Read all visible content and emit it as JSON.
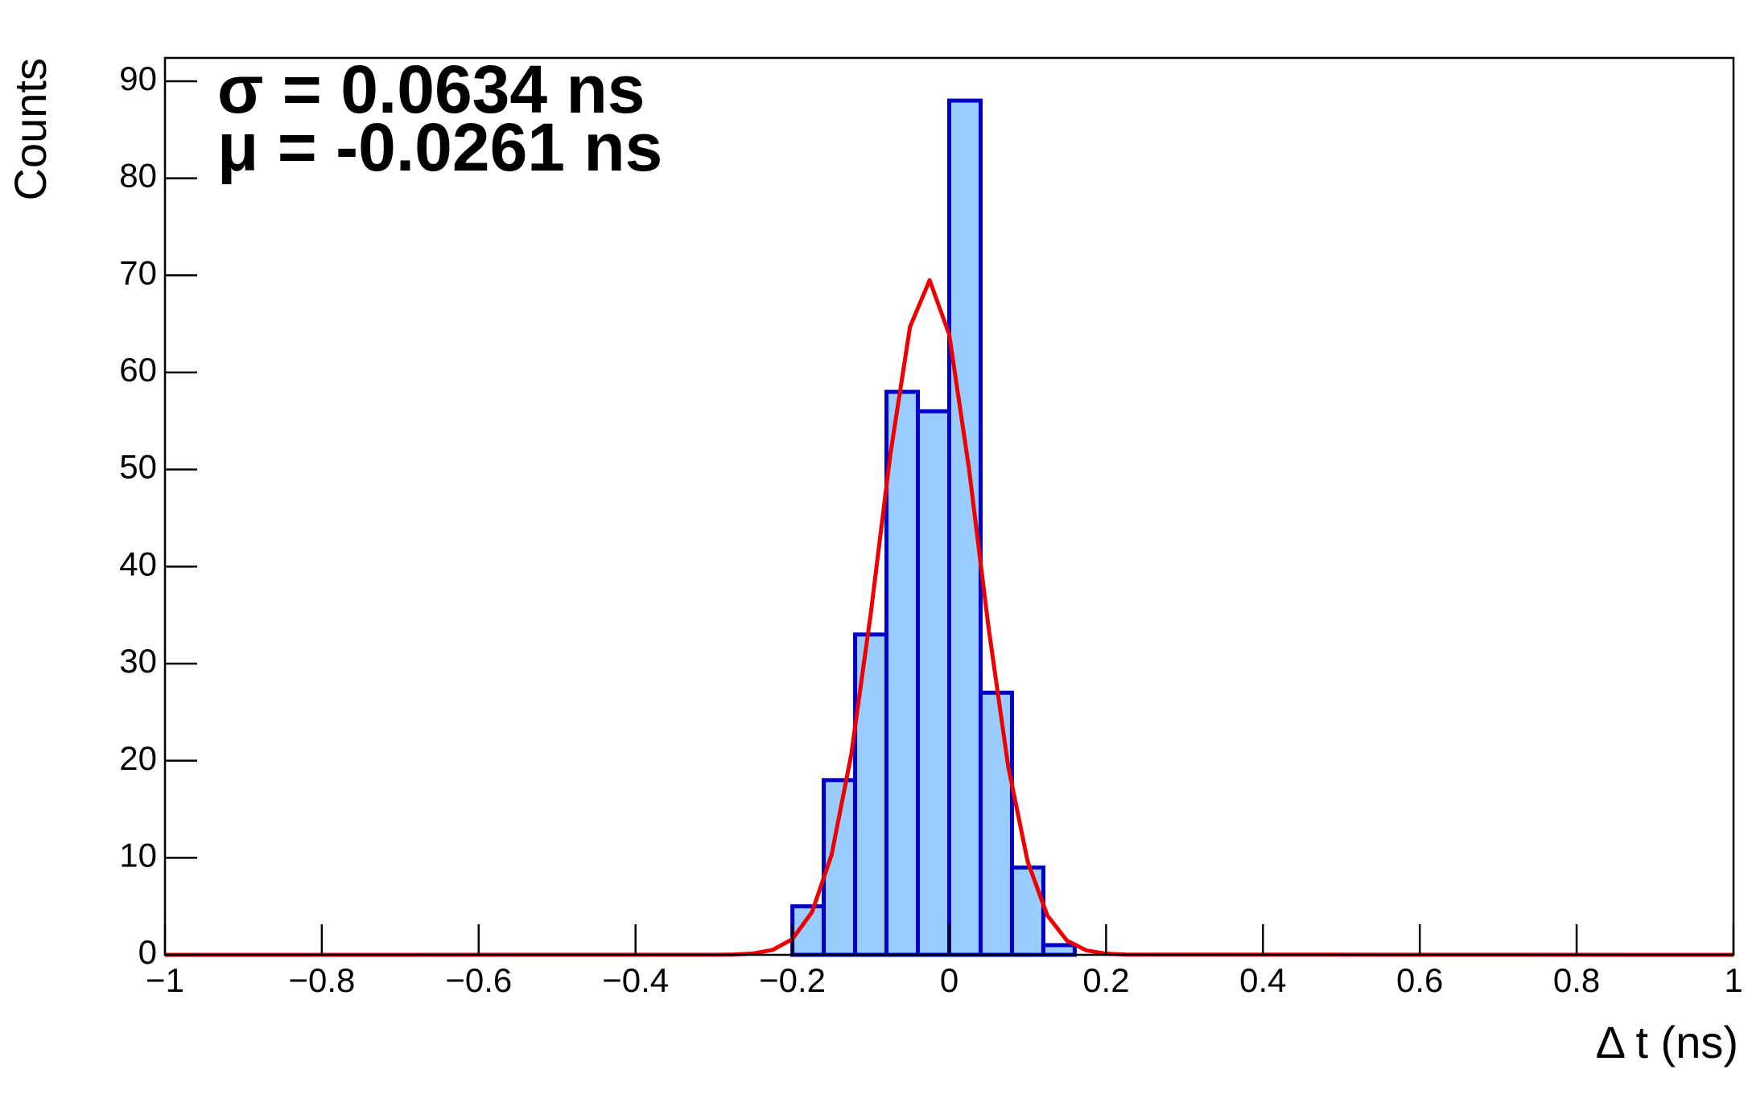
{
  "chart_data": {
    "type": "histogram",
    "xlabel": "Δ t (ns)",
    "ylabel": "Counts",
    "annotations": [
      "σ = 0.0634 ns",
      "μ = -0.0261 ns"
    ],
    "bins": [
      -1,
      -0.96,
      -0.92,
      -0.88,
      -0.84,
      -0.8,
      -0.76,
      -0.72,
      -0.68,
      -0.64,
      -0.6,
      -0.56,
      -0.52,
      -0.48,
      -0.44,
      -0.4,
      -0.36,
      -0.32,
      -0.28,
      -0.24,
      -0.2,
      -0.16,
      -0.12,
      -0.08,
      -0.04,
      0,
      0.04,
      0.08,
      0.12,
      0.16,
      0.2,
      0.24,
      0.28,
      0.32,
      0.36,
      0.4,
      0.44,
      0.48,
      0.52,
      0.56,
      0.6,
      0.64,
      0.68,
      0.72,
      0.76,
      0.8,
      0.84,
      0.88,
      0.92,
      0.96,
      1
    ],
    "values": [
      0,
      0,
      0,
      0,
      0,
      0,
      0,
      0,
      0,
      0,
      0,
      0,
      0,
      0,
      0,
      0,
      0,
      0,
      0,
      0,
      5,
      18,
      33,
      58,
      56,
      88,
      27,
      9,
      1,
      0,
      0,
      0,
      0,
      0,
      0,
      0,
      0,
      0,
      0,
      0,
      0,
      0,
      0,
      0,
      0,
      0,
      0,
      0,
      0,
      0
    ],
    "color": "#99ccff",
    "edge_color": "#0000cc",
    "fit": {
      "type": "line",
      "color": "#ee0000",
      "x": [
        -1,
        -0.3,
        -0.275,
        -0.25,
        -0.225,
        -0.2,
        -0.175,
        -0.15,
        -0.125,
        -0.1,
        -0.075,
        -0.05,
        -0.025,
        0,
        0.025,
        0.05,
        0.075,
        0.1,
        0.125,
        0.15,
        0.175,
        0.2,
        0.225,
        1
      ],
      "values": [
        0,
        0.01,
        0.03,
        0.14,
        0.51,
        1.62,
        4.4,
        10.3,
        20.6,
        35.2,
        51.6,
        64.7,
        69.5,
        63.9,
        50.2,
        33.8,
        19.5,
        9.6,
        4.07,
        1.47,
        0.45,
        0.12,
        0.03,
        0
      ]
    },
    "xlim": [
      -1,
      1
    ],
    "xticks": [
      {
        "value": -1,
        "label": "−1"
      },
      {
        "value": -0.8,
        "label": "−0.8"
      },
      {
        "value": -0.6,
        "label": "−0.6"
      },
      {
        "value": -0.4,
        "label": "−0.4"
      },
      {
        "value": -0.2,
        "label": "−0.2"
      },
      0,
      0.2,
      0.4,
      0.6,
      0.8,
      1
    ],
    "ylim": [
      0,
      92.4
    ],
    "yticks": [
      0,
      10,
      20,
      30,
      40,
      50,
      60,
      70,
      80,
      90
    ],
    "grid": false
  }
}
